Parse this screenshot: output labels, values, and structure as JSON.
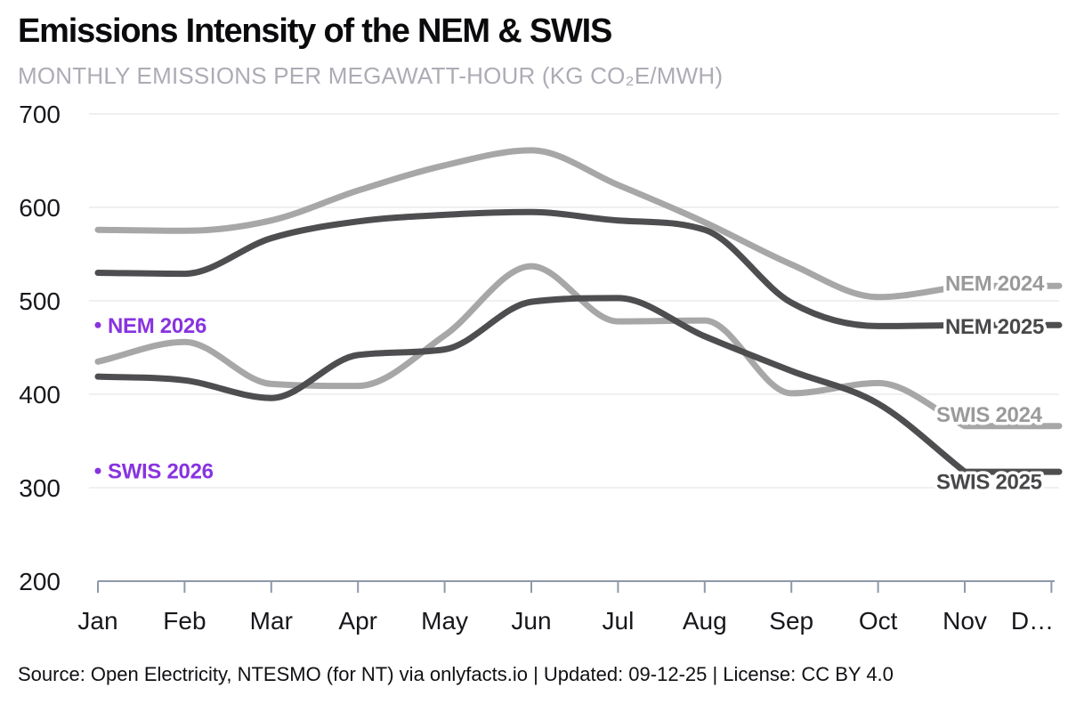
{
  "header": {
    "title": "Emissions Intensity of the NEM & SWIS",
    "subtitle": "MONTHLY EMISSIONS PER MEGAWATT-HOUR (KG CO₂E/MWH)"
  },
  "footer": {
    "text": "Source: Open Electricity, NTESMO (for NT) via onlyfacts.io | Updated: 09-12-25 | License: CC BY 4.0"
  },
  "chart_data": {
    "type": "line",
    "title": "Emissions Intensity of the NEM & SWIS",
    "subtitle": "MONTHLY EMISSIONS PER MEGAWATT-HOUR (KG CO₂E/MWH)",
    "xlabel": "",
    "ylabel": "kg CO2e/MWh",
    "x_tick_labels": [
      "Jan",
      "Feb",
      "Mar",
      "Apr",
      "May",
      "Jun",
      "Jul",
      "Aug",
      "Sep",
      "Oct",
      "Nov",
      "D…"
    ],
    "y_ticks": [
      200,
      300,
      400,
      500,
      600,
      700
    ],
    "ylim": [
      200,
      700
    ],
    "grid": "horizontal",
    "legend_position": "end-of-line-labels",
    "colors": {
      "year_2024": "#a7a7a7",
      "year_2025": "#4e4e50",
      "year_2026": "#8833e0",
      "axis": "#8f98a8",
      "gridline": "#ececee"
    },
    "series": [
      {
        "name": "NEM 2024",
        "color": "#a7a7a7",
        "label_color": "#9a9a9a",
        "values": [
          576,
          575,
          586,
          618,
          645,
          661,
          624,
          584,
          539,
          504,
          516
        ]
      },
      {
        "name": "NEM 2025",
        "color": "#4e4e50",
        "label_color": "#48484a",
        "values": [
          530,
          529,
          567,
          585,
          592,
          595,
          586,
          576,
          498,
          473,
          474
        ]
      },
      {
        "name": "SWIS 2024",
        "color": "#a7a7a7",
        "label_color": "#9a9a9a",
        "values": [
          435,
          456,
          411,
          409,
          463,
          537,
          478,
          479,
          401,
          412,
          366
        ]
      },
      {
        "name": "SWIS 2025",
        "color": "#4e4e50",
        "label_color": "#48484a",
        "values": [
          419,
          415,
          396,
          442,
          448,
          499,
          503,
          462,
          425,
          390,
          317
        ]
      }
    ],
    "point_series": [
      {
        "name": "NEM 2026",
        "color": "#8833e0",
        "x": "Jan",
        "value": 474
      },
      {
        "name": "SWIS 2026",
        "color": "#8833e0",
        "x": "Jan",
        "value": 318
      }
    ]
  }
}
